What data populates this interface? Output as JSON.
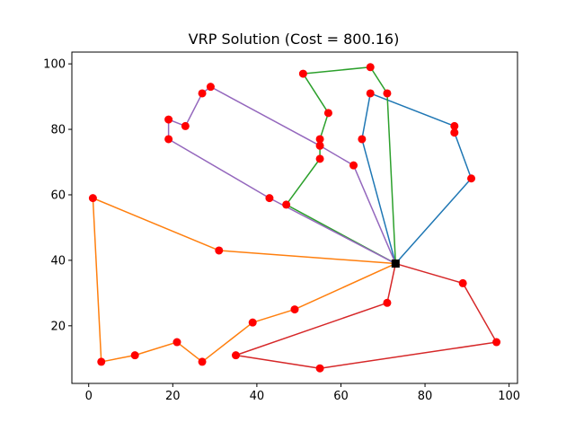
{
  "chart_data": {
    "type": "line",
    "title": "VRP Solution (Cost = 800.16)",
    "xlabel": "",
    "ylabel": "",
    "xlim": [
      -4,
      102
    ],
    "ylim": [
      2.4,
      103.6
    ],
    "xticks": [
      0,
      20,
      40,
      60,
      80,
      100
    ],
    "yticks": [
      20,
      40,
      60,
      80,
      100
    ],
    "xtick_labels": [
      "0",
      "20",
      "40",
      "60",
      "80",
      "100"
    ],
    "ytick_labels": [
      "20",
      "40",
      "60",
      "80",
      "100"
    ],
    "grid": false,
    "legend": "none",
    "depot": {
      "x": 73,
      "y": 39,
      "color": "#000000",
      "marker": "square"
    },
    "customer_marker_color": "#ff0000",
    "series": [
      {
        "color": "#1f77b4",
        "points": [
          [
            73,
            39
          ],
          [
            65,
            77
          ],
          [
            67,
            91
          ],
          [
            87,
            81
          ],
          [
            87,
            79
          ],
          [
            91,
            65
          ],
          [
            73,
            39
          ]
        ]
      },
      {
        "color": "#ff7f0e",
        "points": [
          [
            73,
            39
          ],
          [
            31,
            43
          ],
          [
            1,
            59
          ],
          [
            3,
            9
          ],
          [
            11,
            11
          ],
          [
            21,
            15
          ],
          [
            27,
            9
          ],
          [
            39,
            21
          ],
          [
            49,
            25
          ],
          [
            73,
            39
          ]
        ]
      },
      {
        "color": "#2ca02c",
        "points": [
          [
            73,
            39
          ],
          [
            47,
            57
          ],
          [
            55,
            71
          ],
          [
            55,
            77
          ],
          [
            57,
            85
          ],
          [
            51,
            97
          ],
          [
            67,
            99
          ],
          [
            71,
            91
          ],
          [
            73,
            39
          ]
        ]
      },
      {
        "color": "#d62728",
        "points": [
          [
            73,
            39
          ],
          [
            89,
            33
          ],
          [
            97,
            15
          ],
          [
            55,
            7
          ],
          [
            35,
            11
          ],
          [
            71,
            27
          ],
          [
            73,
            39
          ]
        ]
      },
      {
        "color": "#9467bd",
        "points": [
          [
            73,
            39
          ],
          [
            63,
            69
          ],
          [
            55,
            75
          ],
          [
            29,
            93
          ],
          [
            27,
            91
          ],
          [
            23,
            81
          ],
          [
            19,
            83
          ],
          [
            19,
            77
          ],
          [
            43,
            59
          ],
          [
            73,
            39
          ]
        ]
      }
    ]
  }
}
